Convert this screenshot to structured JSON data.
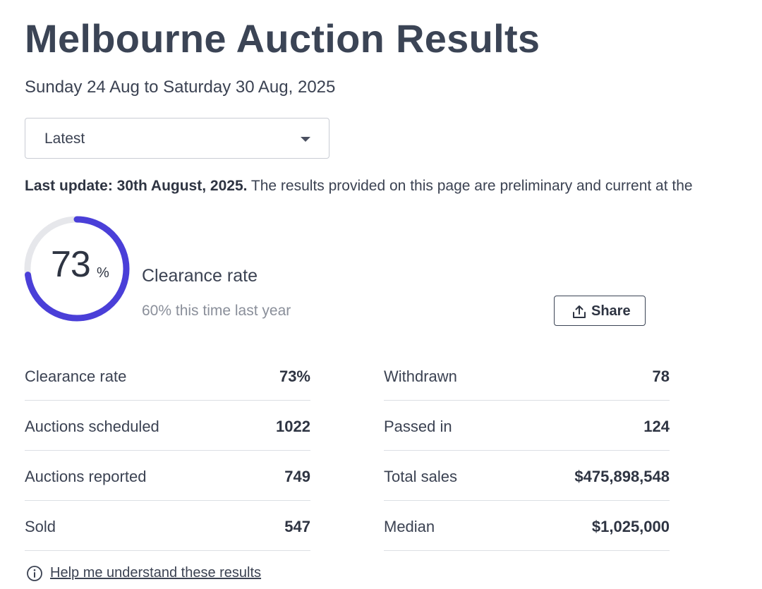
{
  "header": {
    "title": "Melbourne Auction Results",
    "date_range": "Sunday 24 Aug to Saturday 30 Aug, 2025"
  },
  "period_select": {
    "selected": "Latest",
    "icon": "chevron-down-icon"
  },
  "last_update": {
    "label": "Last update: 30th August, 2025.",
    "text": " The results provided on this page are preliminary and current at the"
  },
  "clearance": {
    "value": "73",
    "unit": "%",
    "fraction": 0.73,
    "label": "Clearance rate",
    "comparison": "60% this time last year",
    "ring_color": "#4a3fd8",
    "track_color": "#e6e7eb"
  },
  "share": {
    "label": "Share",
    "icon": "share-upload-icon"
  },
  "stats_left": [
    {
      "label": "Clearance rate",
      "value": "73%"
    },
    {
      "label": "Auctions scheduled",
      "value": "1022"
    },
    {
      "label": "Auctions reported",
      "value": "749"
    },
    {
      "label": "Sold",
      "value": "547"
    }
  ],
  "stats_right": [
    {
      "label": "Withdrawn",
      "value": "78"
    },
    {
      "label": "Passed in",
      "value": "124"
    },
    {
      "label": "Total sales",
      "value": "$475,898,548"
    },
    {
      "label": "Median",
      "value": "$1,025,000"
    }
  ],
  "help": {
    "link": "Help me understand these results",
    "icon": "info-icon"
  }
}
